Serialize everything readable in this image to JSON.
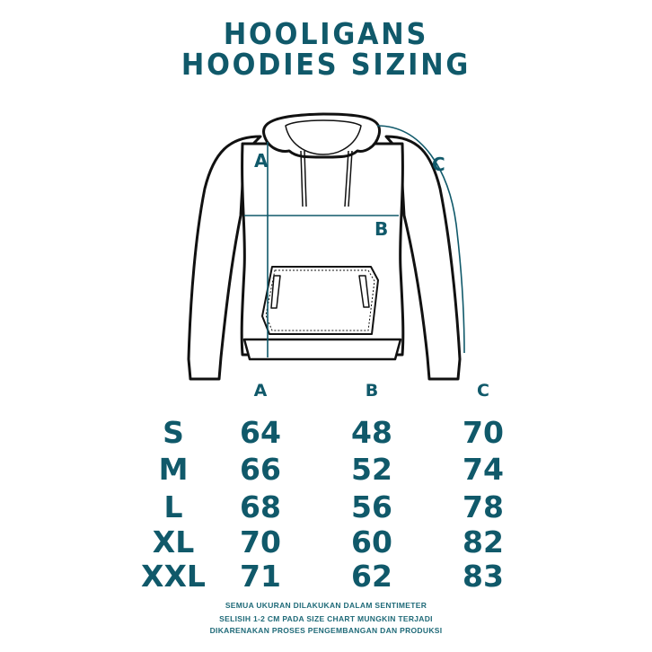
{
  "title": {
    "line1": "HOOLIGANS",
    "line2": "HOODIES SIZING"
  },
  "diagram": {
    "label_a": "A",
    "label_b": "B",
    "label_c": "C"
  },
  "colors": {
    "accent": "#10596a",
    "outline": "#111111"
  },
  "table": {
    "headers": [
      "A",
      "B",
      "C"
    ],
    "rows": [
      {
        "size": "S",
        "a": "64",
        "b": "48",
        "c": "70"
      },
      {
        "size": "M",
        "a": "66",
        "b": "52",
        "c": "74"
      },
      {
        "size": "L",
        "a": "68",
        "b": "56",
        "c": "78"
      },
      {
        "size": "XL",
        "a": "70",
        "b": "60",
        "c": "82"
      },
      {
        "size": "XXL",
        "a": "71",
        "b": "62",
        "c": "83"
      }
    ]
  },
  "notes": [
    "SEMUA UKURAN DILAKUKAN DALAM SENTIMETER",
    "SELISIH 1-2 CM PADA SIZE CHART MUNGKIN TERJADI",
    "DIKARENAKAN PROSES PENGEMBANGAN DAN PRODUKSI"
  ]
}
